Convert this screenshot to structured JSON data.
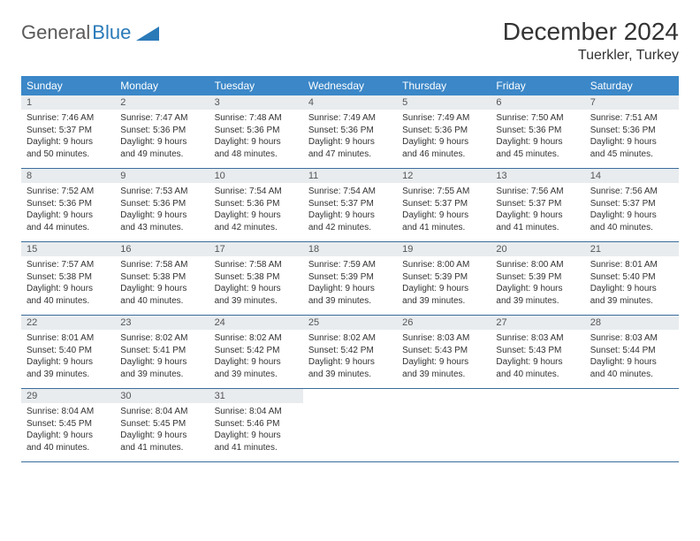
{
  "brand": {
    "part1": "General",
    "part2": "Blue"
  },
  "title": "December 2024",
  "location": "Tuerkler, Turkey",
  "colors": {
    "header_bg": "#3b87c8",
    "header_text": "#ffffff",
    "numbar_bg": "#e8ecef",
    "week_border": "#3b6d9c",
    "page_bg": "#ffffff",
    "text": "#333333",
    "brand_gray": "#5a5a5a",
    "brand_blue": "#2a7ab8"
  },
  "day_names": [
    "Sunday",
    "Monday",
    "Tuesday",
    "Wednesday",
    "Thursday",
    "Friday",
    "Saturday"
  ],
  "weeks": [
    [
      {
        "n": "1",
        "sr": "Sunrise: 7:46 AM",
        "ss": "Sunset: 5:37 PM",
        "d1": "Daylight: 9 hours",
        "d2": "and 50 minutes."
      },
      {
        "n": "2",
        "sr": "Sunrise: 7:47 AM",
        "ss": "Sunset: 5:36 PM",
        "d1": "Daylight: 9 hours",
        "d2": "and 49 minutes."
      },
      {
        "n": "3",
        "sr": "Sunrise: 7:48 AM",
        "ss": "Sunset: 5:36 PM",
        "d1": "Daylight: 9 hours",
        "d2": "and 48 minutes."
      },
      {
        "n": "4",
        "sr": "Sunrise: 7:49 AM",
        "ss": "Sunset: 5:36 PM",
        "d1": "Daylight: 9 hours",
        "d2": "and 47 minutes."
      },
      {
        "n": "5",
        "sr": "Sunrise: 7:49 AM",
        "ss": "Sunset: 5:36 PM",
        "d1": "Daylight: 9 hours",
        "d2": "and 46 minutes."
      },
      {
        "n": "6",
        "sr": "Sunrise: 7:50 AM",
        "ss": "Sunset: 5:36 PM",
        "d1": "Daylight: 9 hours",
        "d2": "and 45 minutes."
      },
      {
        "n": "7",
        "sr": "Sunrise: 7:51 AM",
        "ss": "Sunset: 5:36 PM",
        "d1": "Daylight: 9 hours",
        "d2": "and 45 minutes."
      }
    ],
    [
      {
        "n": "8",
        "sr": "Sunrise: 7:52 AM",
        "ss": "Sunset: 5:36 PM",
        "d1": "Daylight: 9 hours",
        "d2": "and 44 minutes."
      },
      {
        "n": "9",
        "sr": "Sunrise: 7:53 AM",
        "ss": "Sunset: 5:36 PM",
        "d1": "Daylight: 9 hours",
        "d2": "and 43 minutes."
      },
      {
        "n": "10",
        "sr": "Sunrise: 7:54 AM",
        "ss": "Sunset: 5:36 PM",
        "d1": "Daylight: 9 hours",
        "d2": "and 42 minutes."
      },
      {
        "n": "11",
        "sr": "Sunrise: 7:54 AM",
        "ss": "Sunset: 5:37 PM",
        "d1": "Daylight: 9 hours",
        "d2": "and 42 minutes."
      },
      {
        "n": "12",
        "sr": "Sunrise: 7:55 AM",
        "ss": "Sunset: 5:37 PM",
        "d1": "Daylight: 9 hours",
        "d2": "and 41 minutes."
      },
      {
        "n": "13",
        "sr": "Sunrise: 7:56 AM",
        "ss": "Sunset: 5:37 PM",
        "d1": "Daylight: 9 hours",
        "d2": "and 41 minutes."
      },
      {
        "n": "14",
        "sr": "Sunrise: 7:56 AM",
        "ss": "Sunset: 5:37 PM",
        "d1": "Daylight: 9 hours",
        "d2": "and 40 minutes."
      }
    ],
    [
      {
        "n": "15",
        "sr": "Sunrise: 7:57 AM",
        "ss": "Sunset: 5:38 PM",
        "d1": "Daylight: 9 hours",
        "d2": "and 40 minutes."
      },
      {
        "n": "16",
        "sr": "Sunrise: 7:58 AM",
        "ss": "Sunset: 5:38 PM",
        "d1": "Daylight: 9 hours",
        "d2": "and 40 minutes."
      },
      {
        "n": "17",
        "sr": "Sunrise: 7:58 AM",
        "ss": "Sunset: 5:38 PM",
        "d1": "Daylight: 9 hours",
        "d2": "and 39 minutes."
      },
      {
        "n": "18",
        "sr": "Sunrise: 7:59 AM",
        "ss": "Sunset: 5:39 PM",
        "d1": "Daylight: 9 hours",
        "d2": "and 39 minutes."
      },
      {
        "n": "19",
        "sr": "Sunrise: 8:00 AM",
        "ss": "Sunset: 5:39 PM",
        "d1": "Daylight: 9 hours",
        "d2": "and 39 minutes."
      },
      {
        "n": "20",
        "sr": "Sunrise: 8:00 AM",
        "ss": "Sunset: 5:39 PM",
        "d1": "Daylight: 9 hours",
        "d2": "and 39 minutes."
      },
      {
        "n": "21",
        "sr": "Sunrise: 8:01 AM",
        "ss": "Sunset: 5:40 PM",
        "d1": "Daylight: 9 hours",
        "d2": "and 39 minutes."
      }
    ],
    [
      {
        "n": "22",
        "sr": "Sunrise: 8:01 AM",
        "ss": "Sunset: 5:40 PM",
        "d1": "Daylight: 9 hours",
        "d2": "and 39 minutes."
      },
      {
        "n": "23",
        "sr": "Sunrise: 8:02 AM",
        "ss": "Sunset: 5:41 PM",
        "d1": "Daylight: 9 hours",
        "d2": "and 39 minutes."
      },
      {
        "n": "24",
        "sr": "Sunrise: 8:02 AM",
        "ss": "Sunset: 5:42 PM",
        "d1": "Daylight: 9 hours",
        "d2": "and 39 minutes."
      },
      {
        "n": "25",
        "sr": "Sunrise: 8:02 AM",
        "ss": "Sunset: 5:42 PM",
        "d1": "Daylight: 9 hours",
        "d2": "and 39 minutes."
      },
      {
        "n": "26",
        "sr": "Sunrise: 8:03 AM",
        "ss": "Sunset: 5:43 PM",
        "d1": "Daylight: 9 hours",
        "d2": "and 39 minutes."
      },
      {
        "n": "27",
        "sr": "Sunrise: 8:03 AM",
        "ss": "Sunset: 5:43 PM",
        "d1": "Daylight: 9 hours",
        "d2": "and 40 minutes."
      },
      {
        "n": "28",
        "sr": "Sunrise: 8:03 AM",
        "ss": "Sunset: 5:44 PM",
        "d1": "Daylight: 9 hours",
        "d2": "and 40 minutes."
      }
    ],
    [
      {
        "n": "29",
        "sr": "Sunrise: 8:04 AM",
        "ss": "Sunset: 5:45 PM",
        "d1": "Daylight: 9 hours",
        "d2": "and 40 minutes."
      },
      {
        "n": "30",
        "sr": "Sunrise: 8:04 AM",
        "ss": "Sunset: 5:45 PM",
        "d1": "Daylight: 9 hours",
        "d2": "and 41 minutes."
      },
      {
        "n": "31",
        "sr": "Sunrise: 8:04 AM",
        "ss": "Sunset: 5:46 PM",
        "d1": "Daylight: 9 hours",
        "d2": "and 41 minutes."
      },
      null,
      null,
      null,
      null
    ]
  ]
}
